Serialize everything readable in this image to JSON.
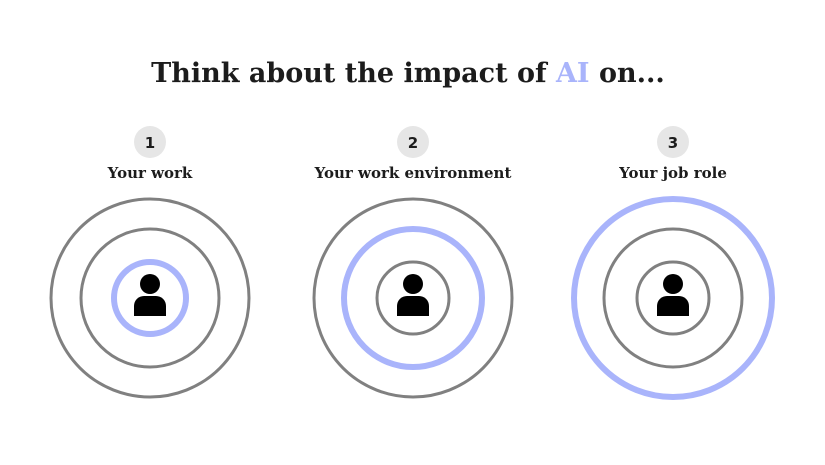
{
  "title": {
    "before": "Think about the impact of ",
    "highlight": "AI",
    "after": " on..."
  },
  "colors": {
    "accent": "#a9b4fb",
    "ring": "#808080",
    "badge": "#e6e6e6",
    "text": "#1c1c1c"
  },
  "items": [
    {
      "number": "1",
      "label": "Your work",
      "highlighted_ring": "inner",
      "icon": "person-icon"
    },
    {
      "number": "2",
      "label": "Your work environment",
      "highlighted_ring": "middle",
      "icon": "person-icon"
    },
    {
      "number": "3",
      "label": "Your job role",
      "highlighted_ring": "outer",
      "icon": "person-icon"
    }
  ]
}
